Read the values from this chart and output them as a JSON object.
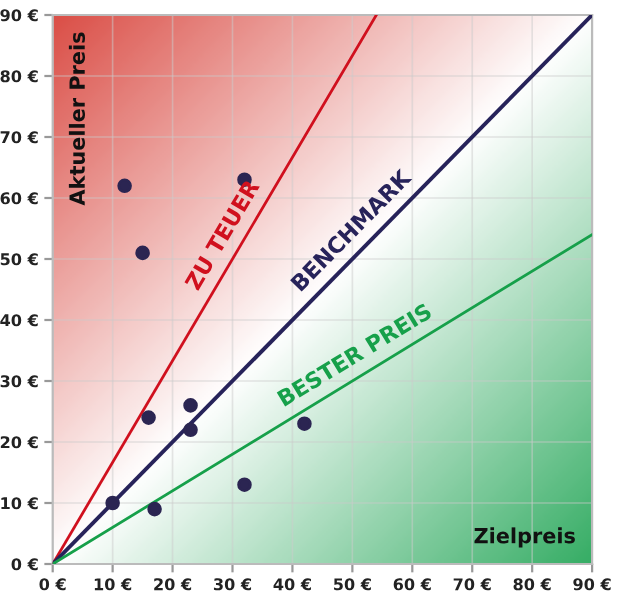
{
  "chart_data": {
    "type": "scatter",
    "xlabel": "Zielpreis",
    "ylabel": "Aktueller Preis",
    "xlim": [
      0,
      90
    ],
    "ylim": [
      0,
      90
    ],
    "xticks": [
      {
        "value": 0,
        "label": "0 €"
      },
      {
        "value": 10,
        "label": "10 €"
      },
      {
        "value": 20,
        "label": "20 €"
      },
      {
        "value": 30,
        "label": "30 €"
      },
      {
        "value": 40,
        "label": "40 €"
      },
      {
        "value": 50,
        "label": "50 €"
      },
      {
        "value": 60,
        "label": "60 €"
      },
      {
        "value": 70,
        "label": "70 €"
      },
      {
        "value": 80,
        "label": "80 €"
      },
      {
        "value": 90,
        "label": "90 €"
      }
    ],
    "yticks": [
      {
        "value": 0,
        "label": "0 €"
      },
      {
        "value": 10,
        "label": "10 €"
      },
      {
        "value": 20,
        "label": "20 €"
      },
      {
        "value": 30,
        "label": "30 €"
      },
      {
        "value": 40,
        "label": "40 €"
      },
      {
        "value": 50,
        "label": "50 €"
      },
      {
        "value": 60,
        "label": "60 €"
      },
      {
        "value": 70,
        "label": "70 €"
      },
      {
        "value": 80,
        "label": "80 €"
      },
      {
        "value": 90,
        "label": "90 €"
      }
    ],
    "grid": true,
    "series": [
      {
        "marker": "circle",
        "color": "#2b2552",
        "x": [
          12,
          15,
          32,
          10,
          16,
          17,
          23,
          23,
          32,
          42
        ],
        "values": [
          62,
          51,
          63,
          10,
          24,
          9,
          26,
          22,
          13,
          23
        ]
      },
      {
        "type": "line",
        "name": "ZU TEUER",
        "color": "#d0101e",
        "x": [
          0,
          54
        ],
        "values": [
          0,
          90
        ]
      },
      {
        "type": "line",
        "name": "BENCHMARK",
        "color": "#27235a",
        "x": [
          0,
          90
        ],
        "values": [
          0,
          90
        ]
      },
      {
        "type": "line",
        "name": "BESTER PREIS",
        "color": "#16a04a",
        "x": [
          0,
          90
        ],
        "values": [
          0,
          54
        ]
      }
    ]
  }
}
